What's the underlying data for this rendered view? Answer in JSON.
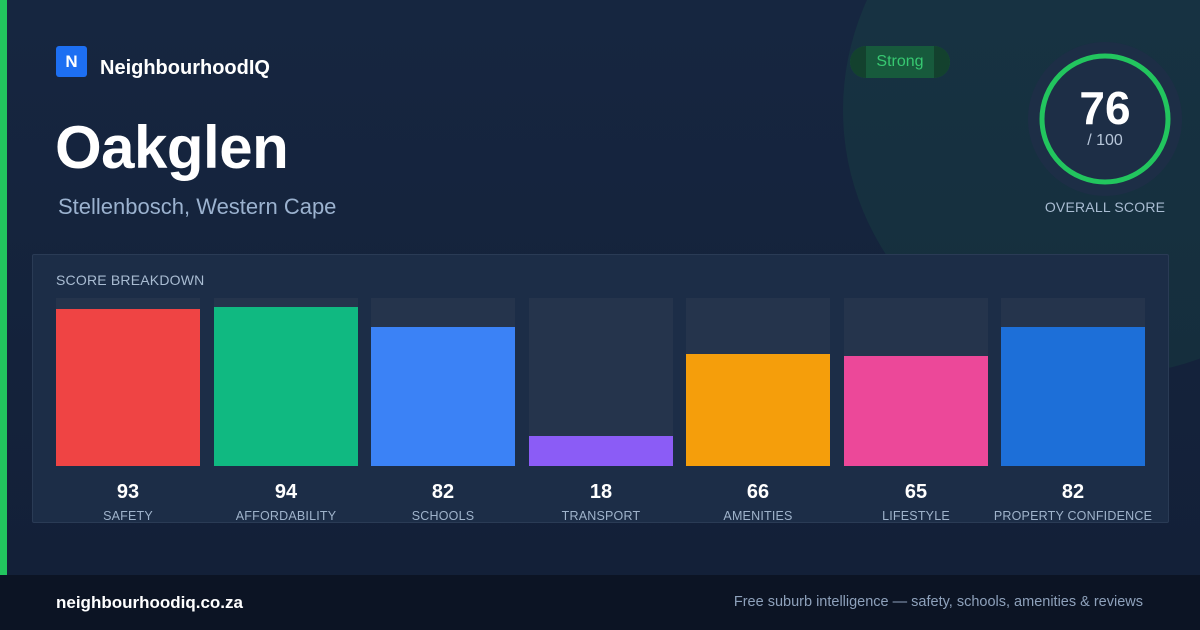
{
  "brand": {
    "logo_letter": "N",
    "name": "NeighbourhoodIQ",
    "logo_color": "#1d6ff2"
  },
  "suburb": {
    "name": "Oakglen",
    "region": "Stellenbosch, Western Cape"
  },
  "rating_badge": {
    "label": "Strong",
    "color": "#37c871"
  },
  "overall": {
    "score": "76",
    "max": "/ 100",
    "fraction": 0.76,
    "caption": "OVERALL SCORE",
    "ring_color": "#22c55e"
  },
  "breakdown": {
    "title": "SCORE BREAKDOWN"
  },
  "chart_data": {
    "type": "bar",
    "title": "SCORE BREAKDOWN",
    "categories": [
      "SAFETY",
      "AFFORDABILITY",
      "SCHOOLS",
      "TRANSPORT",
      "AMENITIES",
      "LIFESTYLE",
      "PROPERTY CONFIDENCE"
    ],
    "values": [
      93,
      94,
      82,
      18,
      66,
      65,
      82
    ],
    "colors": [
      "#ef4444",
      "#10b981",
      "#3b82f6",
      "#8b5cf6",
      "#f59e0b",
      "#ec4899",
      "#1d6fd8"
    ],
    "ylim": [
      0,
      100
    ],
    "grid": false
  },
  "footer": {
    "url": "neighbourhoodiq.co.za",
    "tagline": "Free suburb intelligence — safety, schools, amenities & reviews"
  },
  "accent_color": "#22c55e"
}
